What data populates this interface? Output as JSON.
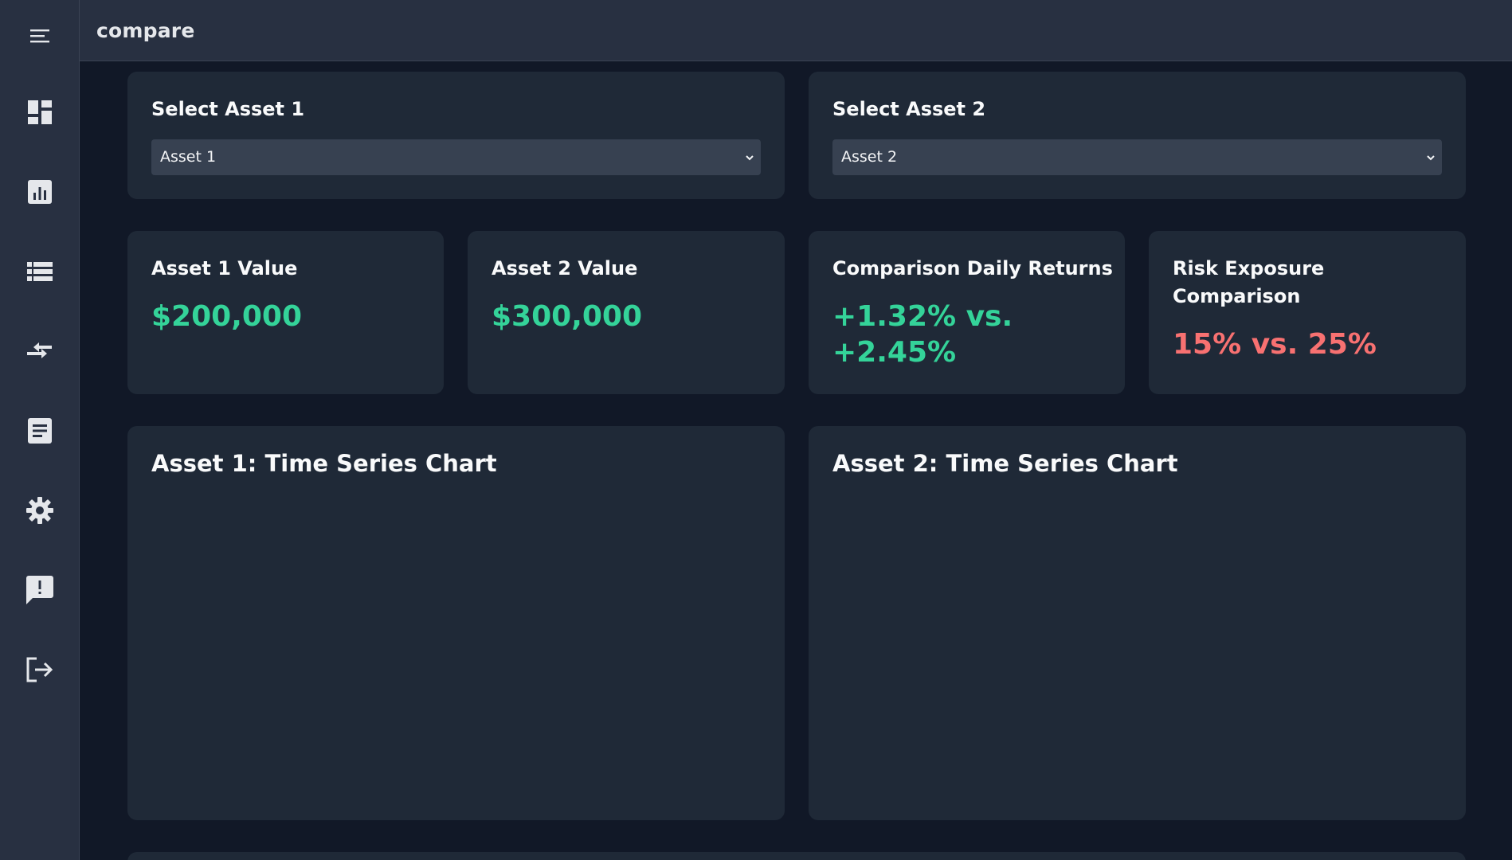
{
  "topbar": {
    "title": "compare"
  },
  "sidebar": {
    "items": [
      {
        "icon": "menu-icon"
      },
      {
        "icon": "dashboard-icon"
      },
      {
        "icon": "bar-chart-icon"
      },
      {
        "icon": "list-icon"
      },
      {
        "icon": "compare-arrows-icon"
      },
      {
        "icon": "document-icon"
      },
      {
        "icon": "settings-gear-icon"
      },
      {
        "icon": "feedback-icon"
      },
      {
        "icon": "logout-icon"
      }
    ]
  },
  "selectors": [
    {
      "title": "Select Asset 1",
      "value": "Asset 1"
    },
    {
      "title": "Select Asset 2",
      "value": "Asset 2"
    }
  ],
  "metrics": [
    {
      "title": "Asset 1 Value",
      "value": "$200,000",
      "color": "#34d399"
    },
    {
      "title": "Asset 2 Value",
      "value": "$300,000",
      "color": "#34d399"
    },
    {
      "title": "Comparison Daily Returns",
      "value_line1": "+1.32% vs.",
      "value_line2": "+2.45%",
      "color": "#34d399"
    },
    {
      "title_line1": "Risk Exposure",
      "title_line2": "Comparison",
      "value": "15% vs. 25%",
      "color": "#f87171"
    }
  ],
  "charts": [
    {
      "title": "Asset 1: Time Series Chart"
    },
    {
      "title": "Asset 2: Time Series Chart"
    }
  ],
  "colors": {
    "background": "#111827",
    "card": "#1f2937",
    "sidebar": "#283041",
    "positive": "#34d399",
    "negative": "#f87171"
  }
}
